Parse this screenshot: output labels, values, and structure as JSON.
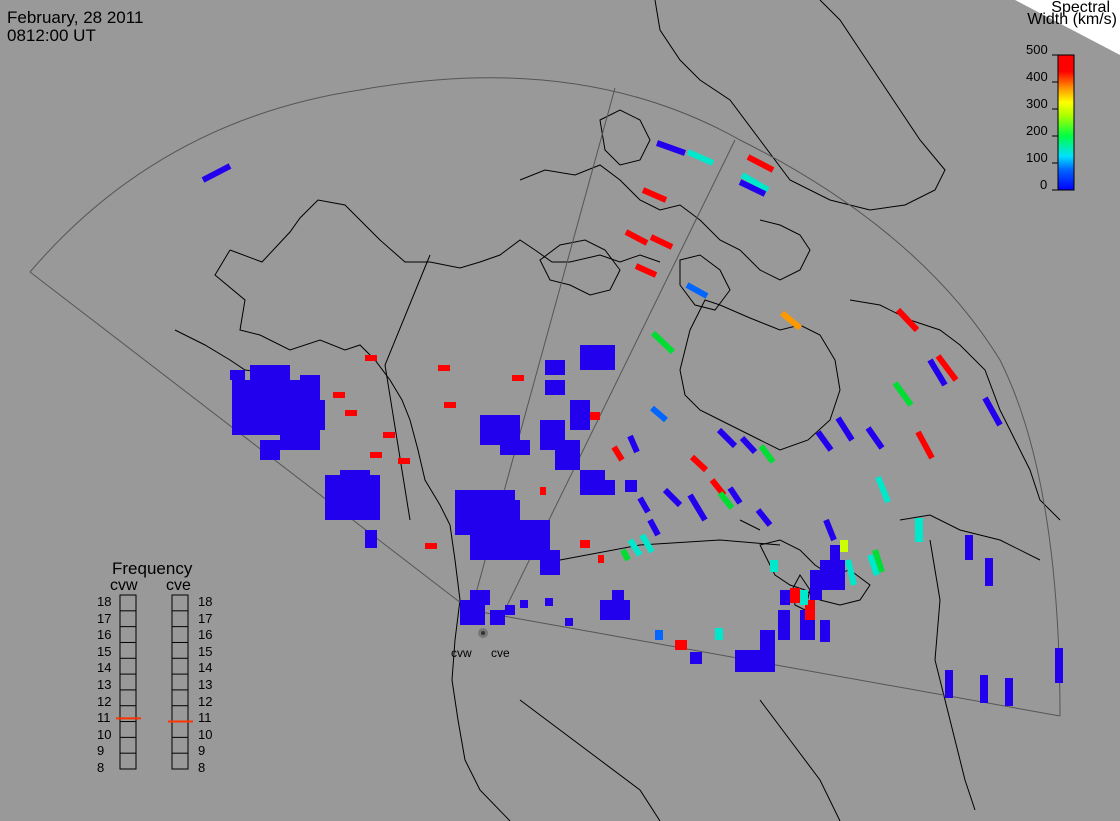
{
  "header": {
    "date": "February, 28 2011",
    "time": "0812:00 UT"
  },
  "legend": {
    "title_line1": "Spectral",
    "title_line2": "Width (km/s)",
    "ticks": [
      "500",
      "400",
      "300",
      "200",
      "100",
      "0"
    ],
    "range": [
      0,
      500
    ]
  },
  "frequency_panel": {
    "title": "Frequency",
    "radars": [
      {
        "name": "cvw",
        "value": 10.7
      },
      {
        "name": "cve",
        "value": 10.5
      }
    ],
    "scale": [
      "18",
      "17",
      "16",
      "15",
      "14",
      "13",
      "12",
      "11",
      "10",
      "9",
      "8"
    ],
    "marker_color": "#ff3300"
  },
  "map": {
    "radar_labels": [
      "cvw",
      "cve"
    ],
    "background_color": "#999999",
    "coastline_color": "#000000",
    "grid_color": "#555555"
  },
  "colors": {
    "low": "#1a00ff",
    "mid": "#00ffcc",
    "high": "#ff0000"
  }
}
